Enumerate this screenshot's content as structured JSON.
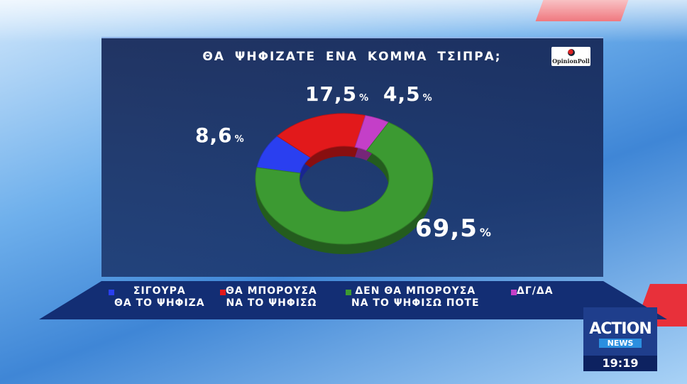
{
  "chart_data": {
    "type": "donut",
    "title": "ΘΑ ΨΗΦΙΖΑΤΕ ΕΝΑ ΚΟΜΜΑ ΤΣΙΠΡΑ;",
    "categories": [
      "ΣΙΓΟΥΡΑ\nΘΑ ΤΟ ΨΗΦΙΖΑ",
      "ΘΑ ΜΠΟΡΟΥΣΑ\nΝΑ ΤΟ ΨΗΦΙΣΩ",
      "ΔΕΝ ΘΑ ΜΠΟΡΟΥΣΑ\nΝΑ ΤΟ ΨΗΦΙΣΩ ΠΟΤΕ",
      "ΔΓ/ΔΑ"
    ],
    "values": [
      8.6,
      17.5,
      69.5,
      4.5
    ],
    "value_labels": [
      "8,6%",
      "17,5%",
      "69,5%",
      "4,5%"
    ],
    "colors": [
      "#2a3ff0",
      "#e2191b",
      "#3c9a32",
      "#c43fc8"
    ]
  },
  "logo": "OpinionPoll",
  "channel": {
    "name": "ACTION",
    "sub": "NEWS",
    "time": "19:19"
  }
}
